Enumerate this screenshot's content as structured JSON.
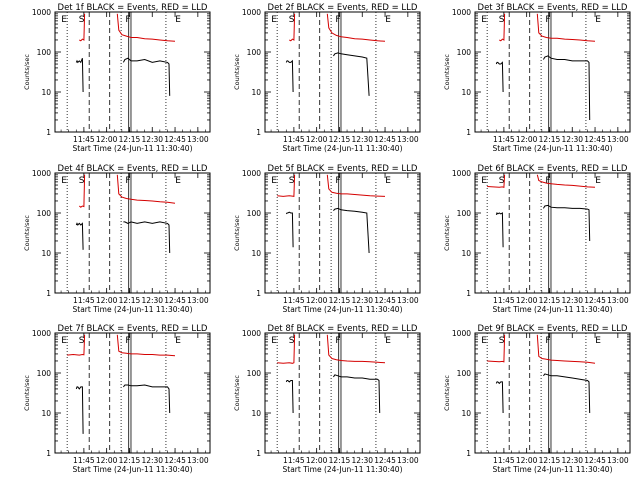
{
  "chart_data": [
    {
      "type": "line",
      "title": "Det 1f BLACK = Events, RED = LLD",
      "xlabel": "Start Time (24-Jun-11 11:30:40)",
      "ylabel": "Counts/sec",
      "x_ticks": [
        "11:45",
        "12:00",
        "12:15",
        "12:30",
        "12:45",
        "13:00"
      ],
      "y_ticks": [
        "1",
        "10",
        "100",
        "1000"
      ],
      "ylim": [
        1,
        1000
      ],
      "y_scale": "log",
      "markers": [
        "E",
        "S",
        "F",
        "E"
      ],
      "series": [
        {
          "color": "#000000",
          "x_minutes": [
            10,
            10.5,
            11,
            12,
            13,
            14,
            14.5
          ],
          "values": [
            55,
            60,
            55,
            60,
            55,
            70,
            10
          ]
        },
        {
          "color": "#000000",
          "x_minutes": [
            41,
            42,
            44,
            46,
            50,
            55,
            60,
            65,
            70,
            71,
            71.5
          ],
          "values": [
            55,
            65,
            70,
            60,
            60,
            65,
            55,
            60,
            55,
            50,
            8
          ]
        },
        {
          "color": "#d40000",
          "x_minutes": [
            12,
            13,
            14,
            15,
            15.5
          ],
          "values": [
            200,
            190,
            210,
            200,
            900
          ]
        },
        {
          "color": "#d40000",
          "x_minutes": [
            37,
            38,
            40,
            43,
            46,
            50,
            55,
            60,
            65,
            70,
            75
          ],
          "values": [
            900,
            350,
            270,
            250,
            230,
            230,
            215,
            210,
            200,
            190,
            185
          ]
        }
      ]
    },
    {
      "type": "line",
      "title": "Det 2f BLACK = Events, RED = LLD",
      "xlabel": "Start Time (24-Jun-11 11:30:40)",
      "ylabel": "Counts/sec",
      "x_ticks": [
        "11:45",
        "12:00",
        "12:15",
        "12:30",
        "12:45",
        "13:00"
      ],
      "y_ticks": [
        "1",
        "10",
        "100",
        "1000"
      ],
      "ylim": [
        1,
        1000
      ],
      "y_scale": "log",
      "markers": [
        "E",
        "S",
        "F",
        "E"
      ],
      "series": [
        {
          "color": "#000000",
          "x_minutes": [
            10,
            10.5,
            11,
            12,
            13,
            14,
            14.5
          ],
          "values": [
            55,
            60,
            60,
            55,
            55,
            60,
            10
          ]
        },
        {
          "color": "#000000",
          "x_minutes": [
            41,
            42,
            44,
            46,
            50,
            55,
            60,
            63,
            64.5
          ],
          "values": [
            80,
            90,
            95,
            90,
            85,
            80,
            75,
            70,
            8
          ]
        },
        {
          "color": "#d40000",
          "x_minutes": [
            12,
            13,
            14,
            15,
            15.5
          ],
          "values": [
            200,
            190,
            210,
            200,
            900
          ]
        },
        {
          "color": "#d40000",
          "x_minutes": [
            37,
            38,
            40,
            43,
            46,
            50,
            55,
            60,
            65,
            70,
            75
          ],
          "values": [
            900,
            400,
            300,
            260,
            240,
            230,
            215,
            210,
            200,
            190,
            185
          ]
        }
      ]
    },
    {
      "type": "line",
      "title": "Det 3f BLACK = Events, RED = LLD",
      "xlabel": "Start Time (24-Jun-11 11:30:40)",
      "ylabel": "Counts/sec",
      "x_ticks": [
        "11:45",
        "12:00",
        "12:15",
        "12:30",
        "12:45",
        "13:00"
      ],
      "y_ticks": [
        "1",
        "10",
        "100",
        "1000"
      ],
      "ylim": [
        1,
        1000
      ],
      "y_scale": "log",
      "markers": [
        "E",
        "S",
        "F",
        "E"
      ],
      "series": [
        {
          "color": "#000000",
          "x_minutes": [
            10,
            10.5,
            11,
            12,
            13,
            14,
            14.5
          ],
          "values": [
            50,
            55,
            55,
            50,
            50,
            55,
            10
          ]
        },
        {
          "color": "#000000",
          "x_minutes": [
            41,
            42,
            44,
            46,
            50,
            55,
            60,
            65,
            70,
            71,
            71.5
          ],
          "values": [
            65,
            75,
            80,
            70,
            65,
            65,
            60,
            60,
            60,
            55,
            2
          ]
        },
        {
          "color": "#d40000",
          "x_minutes": [
            12,
            13,
            14,
            15,
            15.5
          ],
          "values": [
            200,
            190,
            210,
            200,
            900
          ]
        },
        {
          "color": "#d40000",
          "x_minutes": [
            37,
            38,
            40,
            43,
            46,
            50,
            55,
            60,
            65,
            70,
            75
          ],
          "values": [
            900,
            300,
            250,
            230,
            220,
            220,
            210,
            205,
            200,
            190,
            185
          ]
        }
      ]
    },
    {
      "type": "line",
      "title": "Det 4f BLACK = Events, RED = LLD",
      "xlabel": "Start Time (24-Jun-11 11:30:40)",
      "ylabel": "Counts/sec",
      "x_ticks": [
        "11:45",
        "12:00",
        "12:15",
        "12:30",
        "12:45",
        "13:00"
      ],
      "y_ticks": [
        "1",
        "10",
        "100",
        "1000"
      ],
      "ylim": [
        1,
        1000
      ],
      "y_scale": "log",
      "markers": [
        "E",
        "S",
        "F",
        "E"
      ],
      "series": [
        {
          "color": "#000000",
          "x_minutes": [
            10,
            10.5,
            11,
            12,
            13,
            14,
            14.5
          ],
          "values": [
            50,
            55,
            50,
            55,
            50,
            55,
            12
          ]
        },
        {
          "color": "#000000",
          "x_minutes": [
            41,
            42,
            44,
            46,
            50,
            55,
            60,
            65,
            70,
            71,
            71.5
          ],
          "values": [
            60,
            60,
            55,
            60,
            55,
            60,
            55,
            60,
            55,
            50,
            10
          ]
        },
        {
          "color": "#d40000",
          "x_minutes": [
            12,
            13,
            14,
            15,
            15.5
          ],
          "values": [
            150,
            140,
            150,
            145,
            900
          ]
        },
        {
          "color": "#d40000",
          "x_minutes": [
            37,
            38,
            40,
            43,
            46,
            50,
            55,
            60,
            65,
            70,
            75
          ],
          "values": [
            900,
            300,
            250,
            230,
            220,
            210,
            205,
            200,
            190,
            185,
            175
          ]
        }
      ]
    },
    {
      "type": "line",
      "title": "Det 5f BLACK = Events, RED = LLD",
      "xlabel": "Start Time (24-Jun-11 11:30:40)",
      "ylabel": "Counts/sec",
      "x_ticks": [
        "11:45",
        "12:00",
        "12:15",
        "12:30",
        "12:45",
        "13:00"
      ],
      "y_ticks": [
        "1",
        "10",
        "100",
        "1000"
      ],
      "ylim": [
        1,
        1000
      ],
      "y_scale": "log",
      "markers": [
        "E",
        "S",
        "F",
        "E"
      ],
      "series": [
        {
          "color": "#000000",
          "x_minutes": [
            10,
            10.5,
            11,
            12,
            13,
            14,
            14.5
          ],
          "values": [
            95,
            100,
            100,
            105,
            100,
            100,
            14
          ]
        },
        {
          "color": "#000000",
          "x_minutes": [
            41,
            42,
            44,
            46,
            50,
            55,
            60,
            63,
            64.5
          ],
          "values": [
            115,
            125,
            130,
            120,
            115,
            110,
            105,
            100,
            10
          ]
        },
        {
          "color": "#d40000",
          "x_minutes": [
            4,
            8,
            12,
            14,
            15,
            15.5
          ],
          "values": [
            270,
            260,
            270,
            265,
            260,
            900
          ]
        },
        {
          "color": "#d40000",
          "x_minutes": [
            37,
            38,
            40,
            43,
            46,
            50,
            55,
            60,
            65,
            70,
            75
          ],
          "values": [
            900,
            400,
            330,
            310,
            300,
            300,
            290,
            280,
            270,
            265,
            260
          ]
        }
      ]
    },
    {
      "type": "line",
      "title": "Det 6f BLACK = Events, RED = LLD",
      "xlabel": "Start Time (24-Jun-11 11:30:40)",
      "ylabel": "Counts/sec",
      "x_ticks": [
        "11:45",
        "12:00",
        "12:15",
        "12:30",
        "12:45",
        "13:00"
      ],
      "y_ticks": [
        "1",
        "10",
        "100",
        "1000"
      ],
      "ylim": [
        1,
        1000
      ],
      "y_scale": "log",
      "markers": [
        "E",
        "S",
        "F",
        "E"
      ],
      "series": [
        {
          "color": "#000000",
          "x_minutes": [
            10,
            10.5,
            11,
            12,
            13,
            14,
            14.5
          ],
          "values": [
            90,
            100,
            95,
            100,
            95,
            100,
            14
          ]
        },
        {
          "color": "#000000",
          "x_minutes": [
            41,
            42,
            44,
            46,
            50,
            55,
            60,
            65,
            70,
            71,
            71.5
          ],
          "values": [
            130,
            150,
            155,
            140,
            135,
            135,
            130,
            130,
            125,
            120,
            20
          ]
        },
        {
          "color": "#d40000",
          "x_minutes": [
            4,
            8,
            12,
            14,
            15,
            15.5
          ],
          "values": [
            460,
            450,
            440,
            450,
            440,
            900
          ]
        },
        {
          "color": "#d40000",
          "x_minutes": [
            37,
            38,
            40,
            43,
            46,
            50,
            55,
            60,
            65,
            70,
            75
          ],
          "values": [
            900,
            650,
            600,
            560,
            540,
            520,
            500,
            490,
            470,
            450,
            440
          ]
        }
      ]
    },
    {
      "type": "line",
      "title": "Det 7f BLACK = Events, RED = LLD",
      "xlabel": "Start Time (24-Jun-11 11:30:40)",
      "ylabel": "Counts/sec",
      "x_ticks": [
        "11:45",
        "12:00",
        "12:15",
        "12:30",
        "12:45",
        "13:00"
      ],
      "y_ticks": [
        "1",
        "10",
        "100",
        "1000"
      ],
      "ylim": [
        1,
        1000
      ],
      "y_scale": "log",
      "markers": [
        "E",
        "S",
        "F",
        "E"
      ],
      "series": [
        {
          "color": "#000000",
          "x_minutes": [
            10,
            10.5,
            11,
            12,
            13,
            14,
            14.5
          ],
          "values": [
            40,
            45,
            45,
            40,
            45,
            45,
            3
          ]
        },
        {
          "color": "#000000",
          "x_minutes": [
            41,
            42,
            44,
            46,
            50,
            55,
            60,
            65,
            70,
            71,
            71.5
          ],
          "values": [
            45,
            50,
            50,
            48,
            48,
            50,
            45,
            45,
            45,
            40,
            10
          ]
        },
        {
          "color": "#d40000",
          "x_minutes": [
            4,
            8,
            12,
            14,
            15,
            15.5
          ],
          "values": [
            280,
            290,
            280,
            290,
            285,
            900
          ]
        },
        {
          "color": "#d40000",
          "x_minutes": [
            37,
            38,
            40,
            43,
            46,
            50,
            55,
            60,
            65,
            70,
            75
          ],
          "values": [
            900,
            350,
            320,
            310,
            300,
            300,
            290,
            290,
            280,
            280,
            270
          ]
        }
      ]
    },
    {
      "type": "line",
      "title": "Det 8f BLACK = Events, RED = LLD",
      "xlabel": "Start Time (24-Jun-11 11:30:40)",
      "ylabel": "Counts/sec",
      "x_ticks": [
        "11:45",
        "12:00",
        "12:15",
        "12:30",
        "12:45",
        "13:00"
      ],
      "y_ticks": [
        "1",
        "10",
        "100",
        "1000"
      ],
      "ylim": [
        1,
        1000
      ],
      "y_scale": "log",
      "markers": [
        "E",
        "S",
        "F",
        "E"
      ],
      "series": [
        {
          "color": "#000000",
          "x_minutes": [
            10,
            10.5,
            11,
            12,
            13,
            14,
            14.5
          ],
          "values": [
            60,
            65,
            65,
            60,
            65,
            65,
            10
          ]
        },
        {
          "color": "#000000",
          "x_minutes": [
            41,
            42,
            44,
            46,
            50,
            55,
            60,
            65,
            70,
            71,
            71.5
          ],
          "values": [
            80,
            90,
            85,
            80,
            80,
            75,
            75,
            70,
            70,
            65,
            10
          ]
        },
        {
          "color": "#d40000",
          "x_minutes": [
            4,
            8,
            12,
            14,
            15,
            15.5
          ],
          "values": [
            180,
            175,
            180,
            175,
            180,
            900
          ]
        },
        {
          "color": "#d40000",
          "x_minutes": [
            37,
            38,
            40,
            43,
            46,
            50,
            55,
            60,
            65,
            70,
            75
          ],
          "values": [
            900,
            280,
            230,
            215,
            205,
            200,
            195,
            195,
            190,
            185,
            180
          ]
        }
      ]
    },
    {
      "type": "line",
      "title": "Det 9f BLACK = Events, RED = LLD",
      "xlabel": "Start Time (24-Jun-11 11:30:40)",
      "ylabel": "Counts/sec",
      "x_ticks": [
        "11:45",
        "12:00",
        "12:15",
        "12:30",
        "12:45",
        "13:00"
      ],
      "y_ticks": [
        "1",
        "10",
        "100",
        "1000"
      ],
      "ylim": [
        1,
        1000
      ],
      "y_scale": "log",
      "markers": [
        "E",
        "S",
        "F",
        "E"
      ],
      "series": [
        {
          "color": "#000000",
          "x_minutes": [
            10,
            10.5,
            11,
            12,
            13,
            14,
            14.5
          ],
          "values": [
            55,
            60,
            60,
            55,
            60,
            60,
            10
          ]
        },
        {
          "color": "#000000",
          "x_minutes": [
            41,
            42,
            44,
            46,
            50,
            55,
            60,
            65,
            70,
            71,
            71.5
          ],
          "values": [
            85,
            95,
            90,
            85,
            85,
            80,
            75,
            70,
            65,
            60,
            10
          ]
        },
        {
          "color": "#d40000",
          "x_minutes": [
            4,
            8,
            12,
            14,
            15,
            15.5
          ],
          "values": [
            200,
            195,
            190,
            195,
            190,
            900
          ]
        },
        {
          "color": "#d40000",
          "x_minutes": [
            37,
            38,
            40,
            43,
            46,
            50,
            55,
            60,
            65,
            70,
            75
          ],
          "values": [
            900,
            260,
            230,
            220,
            210,
            205,
            200,
            195,
            190,
            185,
            175
          ]
        }
      ]
    }
  ]
}
